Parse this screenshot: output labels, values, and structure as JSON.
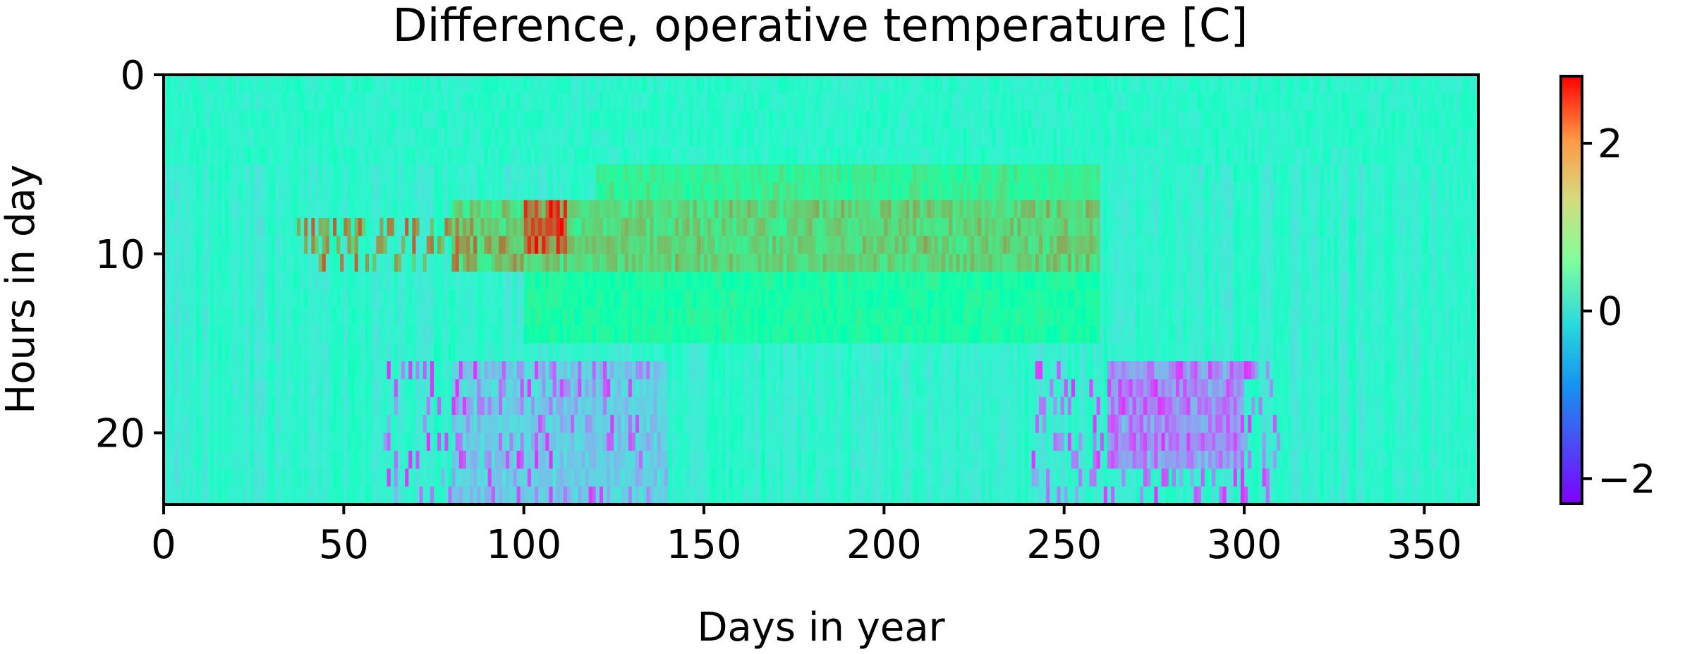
{
  "chart_data": {
    "type": "heatmap",
    "title": "Difference, operative temperature [C]",
    "xlabel": "Days in year",
    "ylabel": "Hours in day",
    "xlim": [
      0,
      365
    ],
    "ylim": [
      0,
      24
    ],
    "y_inverted": true,
    "x_ticks": [
      0,
      50,
      100,
      150,
      200,
      250,
      300,
      350
    ],
    "y_ticks": [
      0,
      10,
      20
    ],
    "colormap": "rainbow",
    "colorbar": {
      "min": -2.3,
      "max": 2.8,
      "ticks": [
        -2,
        0,
        2
      ],
      "tick_labels": [
        "−2",
        "0",
        "2"
      ]
    },
    "grid": false,
    "data_description_bands": [
      {
        "hours": [
          0,
          5
        ],
        "days": [
          0,
          365
        ],
        "value": -0.2
      },
      {
        "hours": [
          5,
          7
        ],
        "days": [
          120,
          260
        ],
        "value": 0.9
      },
      {
        "hours": [
          7,
          11
        ],
        "days": [
          80,
          260
        ],
        "value": 1.4
      },
      {
        "hours": [
          7,
          10
        ],
        "days": [
          100,
          112
        ],
        "value": 2.5
      },
      {
        "hours": [
          11,
          15
        ],
        "days": [
          100,
          260
        ],
        "value": 0.6
      },
      {
        "hours": [
          16,
          22
        ],
        "days": [
          262,
          300
        ],
        "value": -1.6
      },
      {
        "hours": [
          16,
          24
        ],
        "days": [
          80,
          140
        ],
        "value": -0.9
      }
    ]
  },
  "colors": {
    "background": "#ffffff",
    "axis": "#000000"
  }
}
